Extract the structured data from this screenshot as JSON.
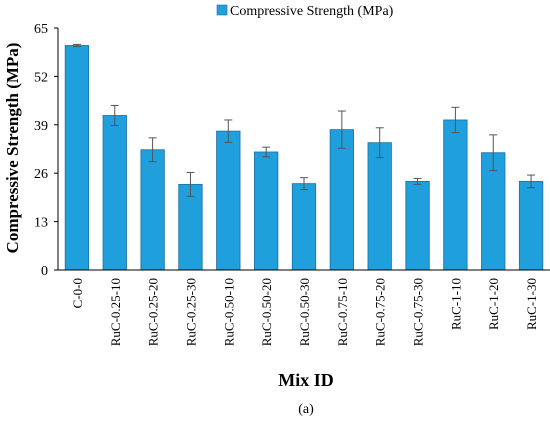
{
  "chart_data": {
    "type": "bar",
    "legend": {
      "label": "Compressive Strength (MPa)",
      "position": "top"
    },
    "xlabel": "Mix ID",
    "ylabel": "Compressive Strength (MPa)",
    "ylim": [
      0,
      65
    ],
    "yticks": [
      "0",
      "13",
      "26",
      "39",
      "52",
      "65"
    ],
    "grid": false,
    "panel_label": "(a)",
    "categories": [
      "C-0-0",
      "RuC-0.25-10",
      "RuC-0.25-20",
      "RuC-0.25-30",
      "RuC-0.50-10",
      "RuC-0.50-20",
      "RuC-0.50-30",
      "RuC-0.75-10",
      "RuC-0.75-20",
      "RuC-0.75-30",
      "RuC-1-10",
      "RuC-1-20",
      "RuC-1-30"
    ],
    "series": [
      {
        "name": "Compressive Strength (MPa)",
        "color": "#1f9fdc",
        "values": [
          60.3,
          41.5,
          32.3,
          23.0,
          37.3,
          31.7,
          23.2,
          37.7,
          34.2,
          23.8,
          40.3,
          31.5,
          23.8
        ],
        "errors": [
          0.3,
          2.7,
          3.2,
          3.2,
          3.0,
          1.3,
          1.6,
          5.0,
          4.0,
          0.8,
          3.4,
          4.8,
          1.7
        ]
      }
    ]
  }
}
